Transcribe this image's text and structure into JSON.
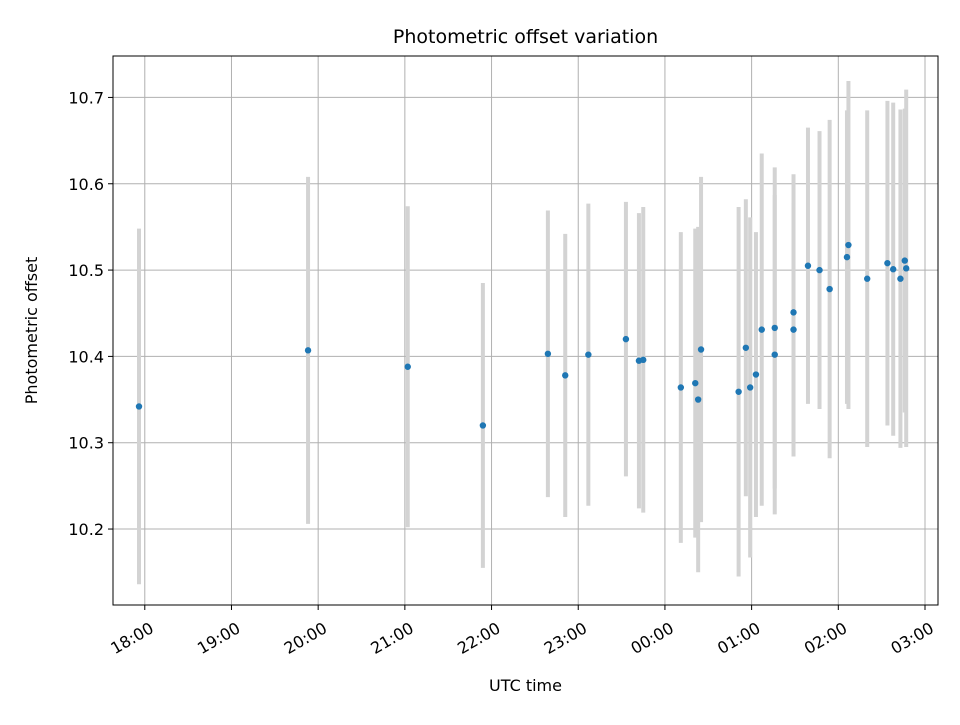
{
  "chart_data": {
    "type": "scatter",
    "title": "Photometric offset variation",
    "xlabel": "UTC time",
    "ylabel": "Photometric offset",
    "grid": true,
    "colors": {
      "points": "#1f77b4",
      "errorbars": "#d3d3d3",
      "grid": "#b0b0b0",
      "axes": "#000000"
    },
    "x_axis": {
      "range": [
        "17:38",
        "03:09"
      ],
      "ticks": [
        "18:00",
        "19:00",
        "20:00",
        "21:00",
        "22:00",
        "23:00",
        "00:00",
        "01:00",
        "02:00",
        "03:00"
      ]
    },
    "y_axis": {
      "range": [
        10.112,
        10.748
      ],
      "ticks": [
        "10.2",
        "10.3",
        "10.4",
        "10.5",
        "10.6",
        "10.7"
      ]
    },
    "series": [
      {
        "points": [
          {
            "x": "17:56",
            "y": 10.342,
            "err": 0.206
          },
          {
            "x": "19:53",
            "y": 10.407,
            "err": 0.201
          },
          {
            "x": "21:02",
            "y": 10.388,
            "err": 0.186
          },
          {
            "x": "21:54",
            "y": 10.32,
            "err": 0.165
          },
          {
            "x": "22:39",
            "y": 10.403,
            "err": 0.166
          },
          {
            "x": "22:51",
            "y": 10.378,
            "err": 0.164
          },
          {
            "x": "23:07",
            "y": 10.402,
            "err": 0.175
          },
          {
            "x": "23:33",
            "y": 10.42,
            "err": 0.159
          },
          {
            "x": "23:42",
            "y": 10.395,
            "err": 0.171
          },
          {
            "x": "23:45",
            "y": 10.396,
            "err": 0.177
          },
          {
            "x": "00:11",
            "y": 10.364,
            "err": 0.18
          },
          {
            "x": "00:21",
            "y": 10.369,
            "err": 0.179
          },
          {
            "x": "00:23",
            "y": 10.35,
            "err": 0.2
          },
          {
            "x": "00:25",
            "y": 10.408,
            "err": 0.2
          },
          {
            "x": "00:51",
            "y": 10.359,
            "err": 0.214
          },
          {
            "x": "00:56",
            "y": 10.41,
            "err": 0.172
          },
          {
            "x": "00:59",
            "y": 10.364,
            "err": 0.197
          },
          {
            "x": "01:03",
            "y": 10.379,
            "err": 0.165
          },
          {
            "x": "01:07",
            "y": 10.431,
            "err": 0.204
          },
          {
            "x": "01:16",
            "y": 10.433,
            "err": 0.186
          },
          {
            "x": "01:16",
            "y": 10.402,
            "err": 0.185
          },
          {
            "x": "01:29",
            "y": 10.451,
            "err": 0.16
          },
          {
            "x": "01:29",
            "y": 10.431,
            "err": 0.147
          },
          {
            "x": "01:39",
            "y": 10.505,
            "err": 0.16
          },
          {
            "x": "01:47",
            "y": 10.5,
            "err": 0.161
          },
          {
            "x": "01:54",
            "y": 10.478,
            "err": 0.196
          },
          {
            "x": "02:06",
            "y": 10.515,
            "err": 0.17
          },
          {
            "x": "02:07",
            "y": 10.529,
            "err": 0.19
          },
          {
            "x": "02:20",
            "y": 10.49,
            "err": 0.195
          },
          {
            "x": "02:34",
            "y": 10.508,
            "err": 0.188
          },
          {
            "x": "02:38",
            "y": 10.501,
            "err": 0.193
          },
          {
            "x": "02:43",
            "y": 10.49,
            "err": 0.196
          },
          {
            "x": "02:46",
            "y": 10.511,
            "err": 0.176
          },
          {
            "x": "02:47",
            "y": 10.502,
            "err": 0.207
          }
        ]
      }
    ]
  }
}
